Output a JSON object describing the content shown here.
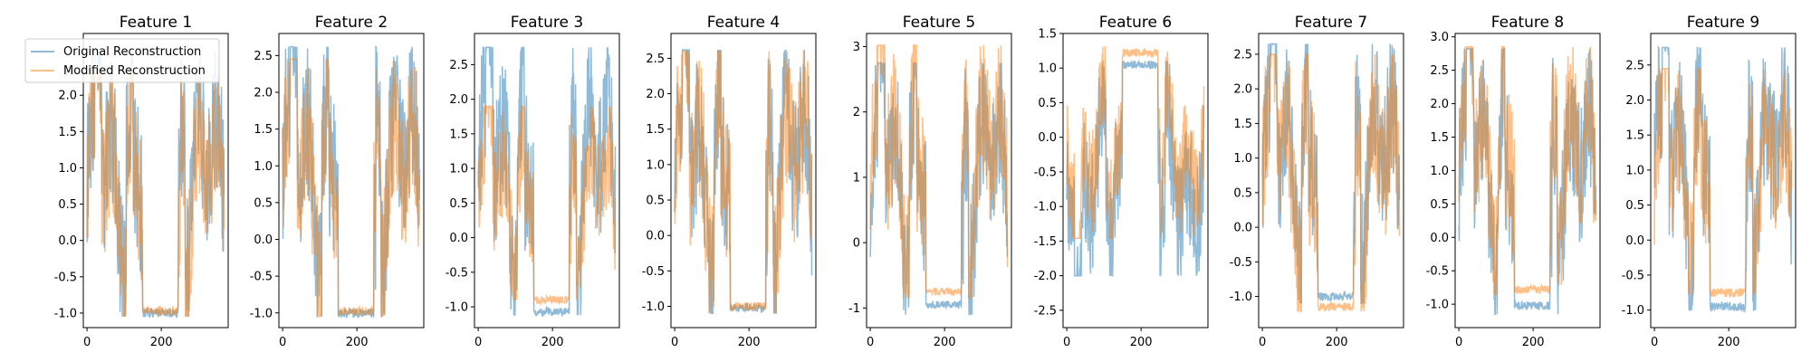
{
  "figure": {
    "background": "#ffffff"
  },
  "legend": {
    "location": "upper-left of first panel",
    "entries": [
      {
        "label": "Original Reconstruction",
        "color": "#1f77b4"
      },
      {
        "label": "Modified Reconstruction",
        "color": "#ff7f0e"
      }
    ]
  },
  "chart_data": [
    {
      "type": "line",
      "title": "Feature 1",
      "xlim": [
        -10,
        380
      ],
      "ylim": [
        -1.2,
        2.85
      ],
      "xticks": [
        0,
        200
      ],
      "yticks": [
        -1.0,
        -0.5,
        0.0,
        0.5,
        1.0,
        1.5,
        2.0
      ],
      "seed": 1,
      "ranges": {
        "original": [
          -1.05,
          2.62
        ],
        "modified": [
          -1.05,
          2.35
        ]
      },
      "low_segment": {
        "original": -1.0,
        "modified": -0.97
      },
      "series": [
        {
          "name": "Original Reconstruction",
          "color": "#1f77b4",
          "opacity": 0.5
        },
        {
          "name": "Modified Reconstruction",
          "color": "#ff7f0e",
          "opacity": 0.5
        }
      ]
    },
    {
      "type": "line",
      "title": "Feature 2",
      "xlim": [
        -10,
        380
      ],
      "ylim": [
        -1.2,
        2.8
      ],
      "xticks": [
        0,
        200
      ],
      "yticks": [
        -1.0,
        -0.5,
        0.0,
        0.5,
        1.0,
        1.5,
        2.0,
        2.5
      ],
      "seed": 2,
      "ranges": {
        "original": [
          -1.05,
          2.62
        ],
        "modified": [
          -1.05,
          2.45
        ]
      },
      "low_segment": {
        "original": -1.0,
        "modified": -0.98
      },
      "series": [
        {
          "name": "Original Reconstruction",
          "color": "#1f77b4",
          "opacity": 0.5
        },
        {
          "name": "Modified Reconstruction",
          "color": "#ff7f0e",
          "opacity": 0.5
        }
      ]
    },
    {
      "type": "line",
      "title": "Feature 3",
      "xlim": [
        -10,
        380
      ],
      "ylim": [
        -1.3,
        2.95
      ],
      "xticks": [
        0,
        200
      ],
      "yticks": [
        -1.0,
        -0.5,
        0.0,
        0.5,
        1.0,
        1.5,
        2.0,
        2.5
      ],
      "seed": 3,
      "ranges": {
        "original": [
          -1.12,
          2.75
        ],
        "modified": [
          -0.9,
          1.9
        ]
      },
      "low_segment": {
        "original": -1.07,
        "modified": -0.9
      },
      "series": [
        {
          "name": "Original Reconstruction",
          "color": "#1f77b4",
          "opacity": 0.5
        },
        {
          "name": "Modified Reconstruction",
          "color": "#ff7f0e",
          "opacity": 0.5
        }
      ]
    },
    {
      "type": "line",
      "title": "Feature 4",
      "xlim": [
        -10,
        380
      ],
      "ylim": [
        -1.3,
        2.85
      ],
      "xticks": [
        0,
        200
      ],
      "yticks": [
        -1.0,
        -0.5,
        0.0,
        0.5,
        1.0,
        1.5,
        2.0,
        2.5
      ],
      "seed": 4,
      "ranges": {
        "original": [
          -1.1,
          2.62
        ],
        "modified": [
          -1.1,
          2.6
        ]
      },
      "low_segment": {
        "original": -1.02,
        "modified": -1.0
      },
      "series": [
        {
          "name": "Original Reconstruction",
          "color": "#1f77b4",
          "opacity": 0.5
        },
        {
          "name": "Modified Reconstruction",
          "color": "#ff7f0e",
          "opacity": 0.5
        }
      ]
    },
    {
      "type": "line",
      "title": "Feature 5",
      "xlim": [
        -10,
        380
      ],
      "ylim": [
        -1.3,
        3.2
      ],
      "xticks": [
        0,
        200
      ],
      "yticks": [
        -1,
        0,
        1,
        2,
        3
      ],
      "seed": 5,
      "ranges": {
        "original": [
          -1.1,
          2.75
        ],
        "modified": [
          -0.85,
          3.02
        ]
      },
      "low_segment": {
        "original": -0.95,
        "modified": -0.75
      },
      "series": [
        {
          "name": "Original Reconstruction",
          "color": "#1f77b4",
          "opacity": 0.5
        },
        {
          "name": "Modified Reconstruction",
          "color": "#ff7f0e",
          "opacity": 0.5
        }
      ]
    },
    {
      "type": "line",
      "title": "Feature 6",
      "xlim": [
        -10,
        380
      ],
      "ylim": [
        -2.75,
        1.5
      ],
      "xticks": [
        0,
        200
      ],
      "yticks": [
        -2.5,
        -2.0,
        -1.5,
        -1.0,
        -0.5,
        0.0,
        0.5,
        1.0,
        1.5
      ],
      "seed": 6,
      "ranges": {
        "original": [
          -2.55,
          1.1
        ],
        "modified": [
          -1.95,
          1.32
        ]
      },
      "low_segment": {
        "original": 1.05,
        "modified": 1.22
      },
      "inverted_pattern": true,
      "series": [
        {
          "name": "Original Reconstruction",
          "color": "#1f77b4",
          "opacity": 0.5
        },
        {
          "name": "Modified Reconstruction",
          "color": "#ff7f0e",
          "opacity": 0.5
        }
      ]
    },
    {
      "type": "line",
      "title": "Feature 7",
      "xlim": [
        -10,
        380
      ],
      "ylim": [
        -1.45,
        2.8
      ],
      "xticks": [
        0,
        200
      ],
      "yticks": [
        -1.0,
        -0.5,
        0.0,
        0.5,
        1.0,
        1.5,
        2.0,
        2.5
      ],
      "seed": 7,
      "ranges": {
        "original": [
          -1.1,
          2.65
        ],
        "modified": [
          -1.22,
          2.5
        ]
      },
      "low_segment": {
        "original": -1.0,
        "modified": -1.15
      },
      "series": [
        {
          "name": "Original Reconstruction",
          "color": "#1f77b4",
          "opacity": 0.5
        },
        {
          "name": "Modified Reconstruction",
          "color": "#ff7f0e",
          "opacity": 0.5
        }
      ]
    },
    {
      "type": "line",
      "title": "Feature 8",
      "xlim": [
        -10,
        380
      ],
      "ylim": [
        -1.35,
        3.05
      ],
      "xticks": [
        0,
        200
      ],
      "yticks": [
        -1.0,
        -0.5,
        0.0,
        0.5,
        1.0,
        1.5,
        2.0,
        2.5,
        3.0
      ],
      "seed": 8,
      "ranges": {
        "original": [
          -1.15,
          2.82
        ],
        "modified": [
          -0.85,
          2.85
        ]
      },
      "low_segment": {
        "original": -1.02,
        "modified": -0.78
      },
      "series": [
        {
          "name": "Original Reconstruction",
          "color": "#1f77b4",
          "opacity": 0.5
        },
        {
          "name": "Modified Reconstruction",
          "color": "#ff7f0e",
          "opacity": 0.5
        }
      ]
    },
    {
      "type": "line",
      "title": "Feature 9",
      "xlim": [
        -10,
        380
      ],
      "ylim": [
        -1.25,
        2.95
      ],
      "xticks": [
        0,
        200
      ],
      "yticks": [
        -1.0,
        -0.5,
        0.0,
        0.5,
        1.0,
        1.5,
        2.0,
        2.5
      ],
      "seed": 9,
      "ranges": {
        "original": [
          -1.0,
          2.75
        ],
        "modified": [
          -0.78,
          2.45
        ]
      },
      "low_segment": {
        "original": -0.95,
        "modified": -0.75
      },
      "series": [
        {
          "name": "Original Reconstruction",
          "color": "#1f77b4",
          "opacity": 0.5
        },
        {
          "name": "Modified Reconstruction",
          "color": "#ff7f0e",
          "opacity": 0.5
        }
      ]
    }
  ]
}
